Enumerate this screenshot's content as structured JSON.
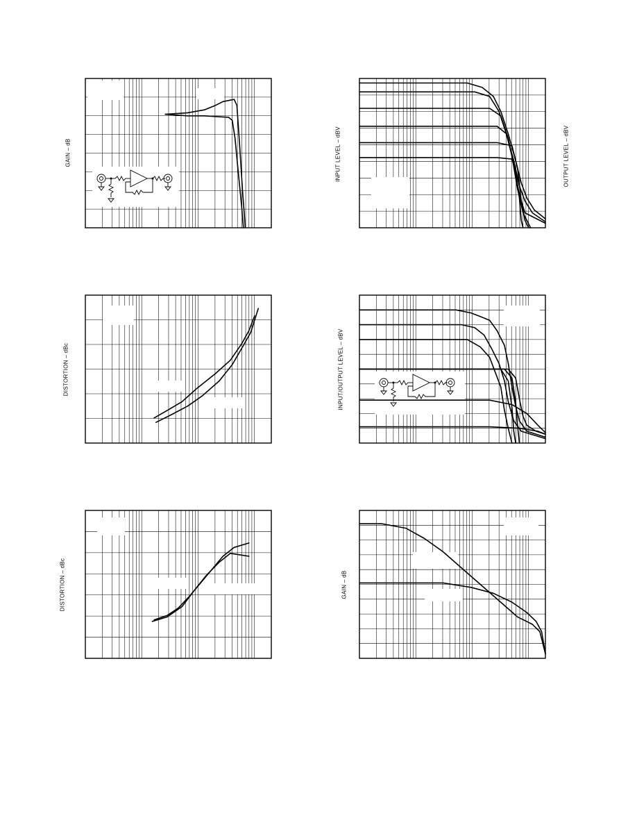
{
  "labels": {
    "p1_y": "GAIN – dB",
    "p2_y": "INPUT LEVEL – dBV",
    "p2_y2": "OUTPUT LEVEL – dBV",
    "p3_y": "DISTORTION – dBc",
    "p4_y": "INPUT/OUTPUT LEVEL – dBV",
    "p5_y": "DISTORTION – dBc",
    "p6_y": "GAIN – dB"
  },
  "chart_data": [
    {
      "id": "p1",
      "type": "line",
      "x_scale": "log",
      "ylabel": "GAIN – dB",
      "series": [
        {
          "points": [
            [
              0.43,
              0.24
            ],
            [
              0.55,
              0.23
            ],
            [
              0.64,
              0.21
            ],
            [
              0.7,
              0.18
            ],
            [
              0.74,
              0.155
            ],
            [
              0.78,
              0.145
            ],
            [
              0.8,
              0.14
            ],
            [
              0.815,
              0.18
            ],
            [
              0.83,
              0.45
            ],
            [
              0.845,
              0.75
            ],
            [
              0.86,
              1.0
            ]
          ]
        },
        {
          "points": [
            [
              0.43,
              0.24
            ],
            [
              0.55,
              0.25
            ],
            [
              0.64,
              0.25
            ],
            [
              0.7,
              0.255
            ],
            [
              0.77,
              0.26
            ],
            [
              0.79,
              0.28
            ],
            [
              0.805,
              0.4
            ],
            [
              0.82,
              0.6
            ],
            [
              0.84,
              0.85
            ],
            [
              0.85,
              1.0
            ]
          ]
        }
      ]
    },
    {
      "id": "p2",
      "type": "line",
      "x_scale": "log",
      "ylabel": "INPUT LEVEL – dBV",
      "y2label": "OUTPUT LEVEL – dBV",
      "series": [
        {
          "points": [
            [
              0.0,
              0.03
            ],
            [
              0.58,
              0.03
            ],
            [
              0.66,
              0.06
            ],
            [
              0.72,
              0.12
            ],
            [
              0.76,
              0.22
            ],
            [
              0.8,
              0.37
            ],
            [
              0.84,
              0.55
            ],
            [
              0.87,
              0.7
            ],
            [
              0.9,
              0.8
            ],
            [
              0.94,
              0.88
            ],
            [
              1.0,
              0.94
            ]
          ]
        },
        {
          "points": [
            [
              0.0,
              0.09
            ],
            [
              0.62,
              0.09
            ],
            [
              0.7,
              0.12
            ],
            [
              0.75,
              0.22
            ],
            [
              0.79,
              0.37
            ],
            [
              0.83,
              0.55
            ],
            [
              0.86,
              0.72
            ],
            [
              0.89,
              0.82
            ],
            [
              0.93,
              0.9
            ],
            [
              1.0,
              0.96
            ]
          ]
        },
        {
          "points": [
            [
              0.0,
              0.2
            ],
            [
              0.7,
              0.2
            ],
            [
              0.76,
              0.25
            ],
            [
              0.8,
              0.4
            ],
            [
              0.83,
              0.58
            ],
            [
              0.86,
              0.78
            ],
            [
              0.89,
              0.9
            ],
            [
              1.0,
              0.97
            ]
          ]
        },
        {
          "points": [
            [
              0.0,
              0.32
            ],
            [
              0.74,
              0.32
            ],
            [
              0.79,
              0.37
            ],
            [
              0.82,
              0.52
            ],
            [
              0.85,
              0.74
            ],
            [
              0.88,
              0.9
            ],
            [
              0.92,
              1.0
            ]
          ]
        },
        {
          "points": [
            [
              0.0,
              0.43
            ],
            [
              0.74,
              0.43
            ],
            [
              0.82,
              0.45
            ],
            [
              0.85,
              0.6
            ],
            [
              0.87,
              0.82
            ],
            [
              0.89,
              0.95
            ],
            [
              0.91,
              1.0
            ]
          ]
        },
        {
          "points": [
            [
              0.0,
              0.53
            ],
            [
              0.74,
              0.53
            ],
            [
              0.82,
              0.54
            ],
            [
              0.84,
              0.62
            ],
            [
              0.86,
              0.8
            ],
            [
              0.87,
              0.95
            ],
            [
              0.88,
              1.0
            ]
          ]
        }
      ]
    },
    {
      "id": "p3",
      "type": "line",
      "x_scale": "log",
      "ylabel": "DISTORTION – dBc",
      "series": [
        {
          "points": [
            [
              0.37,
              0.83
            ],
            [
              0.44,
              0.78
            ],
            [
              0.52,
              0.72
            ],
            [
              0.6,
              0.63
            ],
            [
              0.7,
              0.53
            ],
            [
              0.78,
              0.44
            ],
            [
              0.84,
              0.33
            ],
            [
              0.88,
              0.24
            ],
            [
              0.91,
              0.14
            ]
          ]
        },
        {
          "points": [
            [
              0.38,
              0.86
            ],
            [
              0.46,
              0.81
            ],
            [
              0.55,
              0.75
            ],
            [
              0.63,
              0.68
            ],
            [
              0.72,
              0.58
            ],
            [
              0.79,
              0.47
            ],
            [
              0.85,
              0.34
            ],
            [
              0.89,
              0.25
            ],
            [
              0.93,
              0.09
            ]
          ]
        }
      ]
    },
    {
      "id": "p4",
      "type": "line",
      "x_scale": "log",
      "ylabel": "INPUT/OUTPUT LEVEL – dBV",
      "series": [
        {
          "points": [
            [
              0.0,
              0.1
            ],
            [
              0.52,
              0.1
            ],
            [
              0.6,
              0.12
            ],
            [
              0.66,
              0.15
            ],
            [
              0.7,
              0.17
            ],
            [
              0.74,
              0.24
            ],
            [
              0.78,
              0.34
            ],
            [
              0.8,
              0.46
            ],
            [
              0.82,
              0.62
            ],
            [
              0.84,
              0.75
            ],
            [
              0.86,
              0.85
            ],
            [
              0.9,
              0.92
            ],
            [
              1.0,
              0.96
            ]
          ]
        },
        {
          "points": [
            [
              0.0,
              0.2
            ],
            [
              0.55,
              0.2
            ],
            [
              0.62,
              0.22
            ],
            [
              0.67,
              0.27
            ],
            [
              0.71,
              0.36
            ],
            [
              0.75,
              0.46
            ],
            [
              0.78,
              0.58
            ],
            [
              0.8,
              0.72
            ],
            [
              0.83,
              0.85
            ],
            [
              0.87,
              0.92
            ],
            [
              1.0,
              0.97
            ]
          ]
        },
        {
          "points": [
            [
              0.0,
              0.3
            ],
            [
              0.58,
              0.3
            ],
            [
              0.65,
              0.35
            ],
            [
              0.7,
              0.42
            ],
            [
              0.73,
              0.52
            ],
            [
              0.76,
              0.62
            ],
            [
              0.78,
              0.78
            ],
            [
              0.8,
              0.9
            ],
            [
              0.82,
              1.0
            ]
          ]
        },
        {
          "points": [
            [
              0.0,
              0.5
            ],
            [
              0.8,
              0.5
            ],
            [
              0.84,
              0.56
            ],
            [
              0.86,
              0.7
            ],
            [
              0.88,
              0.82
            ],
            [
              0.9,
              0.88
            ],
            [
              0.95,
              0.92
            ],
            [
              1.0,
              0.94
            ]
          ]
        },
        {
          "points": [
            [
              0.0,
              0.5
            ],
            [
              0.78,
              0.5
            ],
            [
              0.82,
              0.56
            ],
            [
              0.84,
              0.72
            ],
            [
              0.85,
              0.88
            ],
            [
              0.86,
              1.0
            ]
          ]
        },
        {
          "points": [
            [
              0.0,
              0.5
            ],
            [
              0.76,
              0.5
            ],
            [
              0.8,
              0.58
            ],
            [
              0.82,
              0.76
            ],
            [
              0.83,
              0.92
            ],
            [
              0.84,
              1.0
            ]
          ]
        },
        {
          "points": [
            [
              0.0,
              0.71
            ],
            [
              0.7,
              0.71
            ],
            [
              0.82,
              0.74
            ],
            [
              0.9,
              0.8
            ],
            [
              0.96,
              0.88
            ],
            [
              1.0,
              0.93
            ]
          ]
        },
        {
          "points": [
            [
              0.0,
              0.89
            ],
            [
              0.7,
              0.89
            ],
            [
              0.86,
              0.9
            ],
            [
              0.96,
              0.92
            ],
            [
              1.0,
              0.94
            ]
          ]
        }
      ]
    },
    {
      "id": "p5",
      "type": "line",
      "x_scale": "log",
      "ylabel": "DISTORTION – dBc",
      "series": [
        {
          "points": [
            [
              0.37,
              0.74
            ],
            [
              0.44,
              0.71
            ],
            [
              0.5,
              0.66
            ],
            [
              0.56,
              0.58
            ],
            [
              0.62,
              0.49
            ],
            [
              0.68,
              0.4
            ],
            [
              0.74,
              0.31
            ],
            [
              0.8,
              0.25
            ],
            [
              0.88,
              0.22
            ]
          ]
        },
        {
          "points": [
            [
              0.36,
              0.75
            ],
            [
              0.44,
              0.72
            ],
            [
              0.52,
              0.65
            ],
            [
              0.58,
              0.55
            ],
            [
              0.65,
              0.44
            ],
            [
              0.72,
              0.35
            ],
            [
              0.78,
              0.29
            ],
            [
              0.83,
              0.3
            ],
            [
              0.88,
              0.31
            ]
          ]
        }
      ]
    },
    {
      "id": "p6",
      "type": "line",
      "x_scale": "log",
      "ylabel": "GAIN – dB",
      "series": [
        {
          "points": [
            [
              0.0,
              0.09
            ],
            [
              0.12,
              0.09
            ],
            [
              0.25,
              0.12
            ],
            [
              0.35,
              0.19
            ],
            [
              0.45,
              0.28
            ],
            [
              0.55,
              0.39
            ],
            [
              0.65,
              0.5
            ],
            [
              0.75,
              0.61
            ],
            [
              0.85,
              0.72
            ],
            [
              0.93,
              0.77
            ],
            [
              0.97,
              0.82
            ],
            [
              1.0,
              0.97
            ]
          ]
        },
        {
          "points": [
            [
              0.0,
              0.49
            ],
            [
              0.45,
              0.49
            ],
            [
              0.6,
              0.52
            ],
            [
              0.72,
              0.56
            ],
            [
              0.82,
              0.62
            ],
            [
              0.9,
              0.69
            ],
            [
              0.95,
              0.75
            ],
            [
              0.98,
              0.82
            ],
            [
              1.0,
              0.97
            ]
          ]
        }
      ]
    }
  ]
}
